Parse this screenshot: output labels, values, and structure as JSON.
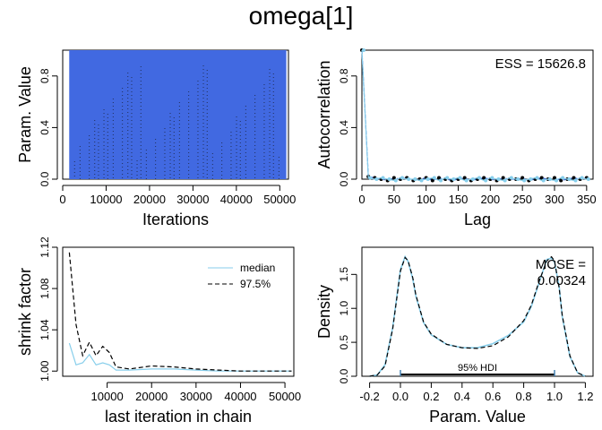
{
  "title": "omega[1]",
  "colors": {
    "trace": "#4169e1",
    "chain_light": "#87ceeb",
    "axis": "#000000",
    "hdi": "#4682b4"
  },
  "chart_data": [
    {
      "id": "trace",
      "type": "line",
      "title": "",
      "xlabel": "Iterations",
      "ylabel": "Param. Value",
      "xlim": [
        0,
        52000
      ],
      "ylim": [
        0,
        1
      ],
      "xticks": [
        0,
        10000,
        20000,
        30000,
        40000,
        50000
      ],
      "xtick_labels": [
        "0",
        "10000",
        "20000",
        "30000",
        "40000",
        "50000"
      ],
      "yticks": [
        0.0,
        0.4,
        0.8
      ],
      "ytick_labels": [
        "0.0",
        "0.4",
        "0.8"
      ],
      "x_range": [
        1500,
        51500
      ],
      "value_range": [
        0.0,
        1.0
      ]
    },
    {
      "id": "acf",
      "type": "line",
      "title": "",
      "xlabel": "Lag",
      "ylabel": "Autocorrelation",
      "annotation": "ESS = 15626.8",
      "xlim": [
        0,
        360
      ],
      "ylim": [
        0,
        1
      ],
      "xticks": [
        0,
        50,
        100,
        150,
        200,
        250,
        300,
        350
      ],
      "xtick_labels": [
        "0",
        "50",
        "100",
        "150",
        "200",
        "250",
        "300",
        "350"
      ],
      "yticks": [
        0.0,
        0.4,
        0.8
      ],
      "ytick_labels": [
        "0.0",
        "0.4",
        "0.8"
      ],
      "lags": [
        0,
        10,
        20,
        30,
        40,
        50,
        60,
        70,
        80,
        90,
        100,
        110,
        120,
        130,
        140,
        150,
        160,
        170,
        180,
        190,
        200,
        210,
        220,
        230,
        240,
        250,
        260,
        270,
        280,
        290,
        300,
        310,
        320,
        330,
        340,
        350
      ],
      "series": [
        {
          "name": "chain 1",
          "values": [
            1.0,
            0.02,
            0.01,
            0.0,
            -0.01,
            0.01,
            0.0,
            0.01,
            -0.01,
            0.0,
            0.01,
            -0.01,
            0.01,
            0.0,
            -0.01,
            0.0,
            0.01,
            -0.01,
            0.0,
            0.01,
            0.0,
            -0.01,
            0.01,
            0.0,
            0.0,
            0.01,
            -0.01,
            0.0,
            0.01,
            0.0,
            0.01,
            -0.01,
            0.0,
            0.01,
            0.0,
            0.01
          ]
        },
        {
          "name": "chain 2",
          "values": [
            1.0,
            0.01,
            0.0,
            0.01,
            0.0,
            -0.01,
            0.01,
            0.0,
            0.0,
            -0.01,
            0.0,
            0.01,
            -0.01,
            0.01,
            0.0,
            0.01,
            -0.01,
            0.0,
            0.01,
            -0.01,
            0.01,
            0.0,
            -0.01,
            0.01,
            0.0,
            -0.01,
            0.0,
            0.01,
            -0.01,
            0.0,
            -0.01,
            0.01,
            0.0,
            -0.01,
            0.01,
            0.0
          ]
        }
      ]
    },
    {
      "id": "shrink",
      "type": "line",
      "title": "",
      "xlabel": "last iteration in chain",
      "ylabel": "shrink factor",
      "xlim": [
        0,
        52000
      ],
      "ylim": [
        0.995,
        1.12
      ],
      "xticks": [
        10000,
        20000,
        30000,
        40000,
        50000
      ],
      "xtick_labels": [
        "10000",
        "20000",
        "30000",
        "40000",
        "50000"
      ],
      "yticks": [
        1.0,
        1.04,
        1.08,
        1.12
      ],
      "ytick_labels": [
        "1.00",
        "1.04",
        "1.08",
        "1.12"
      ],
      "legend": {
        "position": "top-right",
        "entries": [
          "median",
          "97.5%"
        ]
      },
      "x": [
        1500,
        3000,
        4500,
        6000,
        7500,
        9000,
        10500,
        12000,
        15000,
        20000,
        25000,
        30000,
        35000,
        40000,
        45000,
        50000,
        51500
      ],
      "series": [
        {
          "name": "median",
          "values": [
            1.027,
            1.006,
            1.008,
            1.016,
            1.006,
            1.008,
            1.006,
            1.001,
            1.001,
            1.002,
            1.002,
            1.001,
            1.0,
            1.0,
            1.0,
            1.0,
            1.0
          ]
        },
        {
          "name": "97.5%",
          "values": [
            1.115,
            1.045,
            1.015,
            1.028,
            1.015,
            1.024,
            1.018,
            1.004,
            1.002,
            1.005,
            1.004,
            1.002,
            1.001,
            1.0,
            1.0,
            1.0,
            1.0
          ]
        }
      ]
    },
    {
      "id": "density",
      "type": "line",
      "title": "",
      "xlabel": "Param. Value",
      "ylabel": "Density",
      "annotation": [
        "MCSE =",
        "0.00324"
      ],
      "hdi_label": "95% HDI",
      "hdi": [
        0.0,
        1.0
      ],
      "xlim": [
        -0.25,
        1.25
      ],
      "ylim": [
        0,
        1.9
      ],
      "xticks": [
        -0.2,
        0.0,
        0.2,
        0.4,
        0.6,
        0.8,
        1.0,
        1.2
      ],
      "xtick_labels": [
        "-0.2",
        "0.0",
        "0.2",
        "0.4",
        "0.6",
        "0.8",
        "1.0",
        "1.2"
      ],
      "yticks": [
        0.0,
        0.5,
        1.0,
        1.5
      ],
      "ytick_labels": [
        "0.0",
        "0.5",
        "1.0",
        "1.5"
      ],
      "x": [
        -0.2,
        -0.15,
        -0.1,
        -0.05,
        0.0,
        0.03,
        0.05,
        0.08,
        0.1,
        0.15,
        0.2,
        0.3,
        0.4,
        0.5,
        0.6,
        0.7,
        0.8,
        0.85,
        0.9,
        0.95,
        0.98,
        1.0,
        1.03,
        1.05,
        1.1,
        1.15,
        1.2
      ],
      "series": [
        {
          "name": "chain 1",
          "values": [
            0.0,
            0.02,
            0.15,
            0.7,
            1.55,
            1.75,
            1.7,
            1.45,
            1.2,
            0.8,
            0.62,
            0.47,
            0.42,
            0.41,
            0.45,
            0.58,
            0.82,
            1.05,
            1.4,
            1.7,
            1.76,
            1.7,
            1.3,
            0.9,
            0.3,
            0.05,
            0.0
          ]
        },
        {
          "name": "chain 2",
          "values": [
            0.0,
            0.02,
            0.17,
            0.72,
            1.57,
            1.76,
            1.69,
            1.43,
            1.18,
            0.79,
            0.61,
            0.47,
            0.42,
            0.42,
            0.48,
            0.6,
            0.8,
            1.03,
            1.38,
            1.72,
            1.74,
            1.68,
            1.32,
            0.88,
            0.29,
            0.05,
            0.0
          ]
        }
      ]
    }
  ]
}
